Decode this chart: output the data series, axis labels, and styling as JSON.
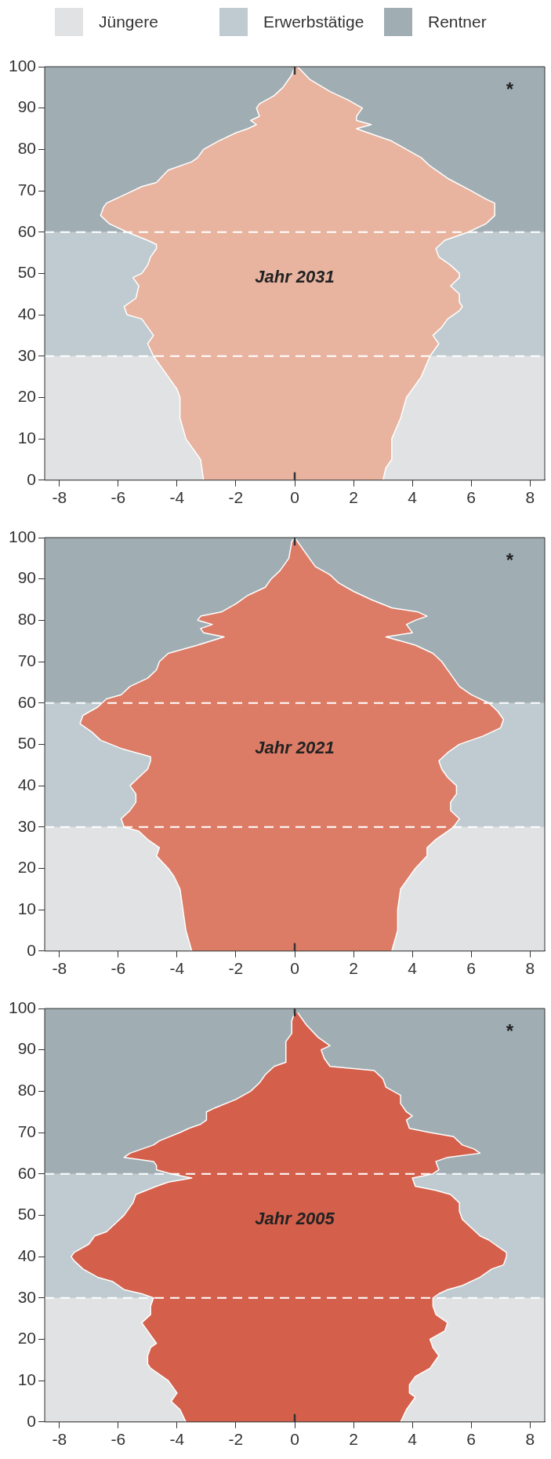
{
  "chart_data": [
    {
      "type": "area",
      "orientation": "horizontal",
      "legend": "top",
      "grid": false,
      "xlim": [
        -8.5,
        8.5
      ],
      "xticks": [
        -8,
        -6,
        -4,
        -2,
        0,
        2,
        4,
        6,
        8
      ],
      "ylim": [
        0,
        100
      ],
      "yticks": [
        0,
        10,
        20,
        30,
        40,
        50,
        60,
        70,
        80,
        90,
        100
      ],
      "bands": [
        {
          "axis": "y",
          "from": 0,
          "to": 30,
          "label": "Jüngere",
          "color": "#e1e2e3"
        },
        {
          "axis": "y",
          "from": 30,
          "to": 60,
          "label": "Erwerbstätige",
          "color": "#bfcbd0"
        },
        {
          "axis": "y",
          "from": 60,
          "to": 100,
          "label": "Rentner",
          "color": "#a0aeb4"
        }
      ],
      "ref_lines": [
        {
          "axis": "y",
          "value": 30,
          "color": "#ffffff",
          "line_style": "dashed"
        },
        {
          "axis": "y",
          "value": 60,
          "color": "#ffffff",
          "line_style": "dashed"
        }
      ],
      "annotations": [
        "Jahr 2031",
        "*"
      ],
      "series": [
        {
          "color": "#e8b4a0",
          "x": [
            0,
            5,
            10,
            15,
            20,
            22,
            25,
            30,
            33,
            35,
            37,
            39,
            40,
            42,
            44,
            47,
            49,
            50,
            52,
            54,
            56,
            57,
            58,
            60,
            62,
            64,
            66,
            67,
            69,
            71,
            72,
            75,
            77,
            78,
            80,
            82,
            84,
            85,
            86,
            87,
            88,
            90,
            91,
            93,
            95,
            98,
            100
          ],
          "values": [
            -3.1,
            -3.2,
            -3.7,
            -3.9,
            -3.9,
            -4.0,
            -4.3,
            -4.8,
            -5.0,
            -4.8,
            -5.0,
            -5.2,
            -5.7,
            -5.8,
            -5.4,
            -5.3,
            -5.5,
            -5.2,
            -5.0,
            -4.9,
            -4.7,
            -4.7,
            -5.0,
            -5.7,
            -6.3,
            -6.6,
            -6.5,
            -6.4,
            -5.8,
            -5.2,
            -4.7,
            -4.3,
            -3.5,
            -3.3,
            -3.1,
            -2.6,
            -2.0,
            -1.6,
            -1.3,
            -1.5,
            -1.2,
            -1.3,
            -1.2,
            -0.7,
            -0.4,
            -0.1,
            0
          ]
        },
        {
          "color": "#e8b4a0",
          "x": [
            0,
            3,
            5,
            10,
            15,
            20,
            25,
            30,
            33,
            35,
            37,
            39,
            41,
            42,
            43,
            45,
            47,
            49,
            50,
            52,
            54,
            56,
            58,
            60,
            62,
            64,
            67,
            68,
            70,
            73,
            76,
            78,
            80,
            82,
            84,
            85,
            86,
            87,
            88,
            90,
            92,
            94,
            97,
            100
          ],
          "values": [
            3.0,
            3.1,
            3.3,
            3.3,
            3.6,
            3.8,
            4.3,
            4.6,
            4.9,
            4.7,
            5.0,
            5.2,
            5.6,
            5.7,
            5.6,
            5.6,
            5.3,
            5.6,
            5.6,
            5.3,
            4.9,
            4.8,
            5.1,
            5.9,
            6.5,
            6.8,
            6.8,
            6.5,
            6.0,
            5.2,
            4.6,
            4.3,
            3.8,
            3.3,
            2.5,
            2.1,
            2.6,
            2.1,
            2.1,
            2.3,
            1.8,
            1.2,
            0.5,
            0.1
          ]
        }
      ]
    },
    {
      "type": "area",
      "orientation": "horizontal",
      "grid": false,
      "xlim": [
        -8.5,
        8.5
      ],
      "xticks": [
        -8,
        -6,
        -4,
        -2,
        0,
        2,
        4,
        6,
        8
      ],
      "ylim": [
        0,
        100
      ],
      "yticks": [
        0,
        10,
        20,
        30,
        40,
        50,
        60,
        70,
        80,
        90,
        100
      ],
      "bands": [
        {
          "axis": "y",
          "from": 0,
          "to": 30,
          "color": "#e1e2e3"
        },
        {
          "axis": "y",
          "from": 30,
          "to": 60,
          "color": "#bfcbd0"
        },
        {
          "axis": "y",
          "from": 60,
          "to": 100,
          "color": "#a0aeb4"
        }
      ],
      "ref_lines": [
        {
          "axis": "y",
          "value": 30,
          "color": "#ffffff",
          "line_style": "dashed"
        },
        {
          "axis": "y",
          "value": 60,
          "color": "#ffffff",
          "line_style": "dashed"
        }
      ],
      "annotations": [
        "Jahr 2021",
        "*"
      ],
      "series": [
        {
          "color": "#dc7c66",
          "x": [
            0,
            5,
            10,
            15,
            18,
            20,
            23,
            25,
            27,
            29,
            30,
            32,
            34,
            36,
            38,
            40,
            42,
            44,
            46,
            47,
            49,
            51,
            53,
            55,
            57,
            59,
            61,
            62,
            64,
            66,
            68,
            70,
            72,
            74,
            76,
            77,
            78,
            79,
            80,
            81,
            82,
            84,
            86,
            88,
            90,
            92,
            95,
            99,
            100
          ],
          "values": [
            -3.5,
            -3.7,
            -3.8,
            -3.9,
            -4.1,
            -4.3,
            -4.7,
            -4.6,
            -5.0,
            -5.3,
            -5.8,
            -5.9,
            -5.6,
            -5.4,
            -5.4,
            -5.6,
            -5.3,
            -5.0,
            -4.9,
            -4.9,
            -5.9,
            -6.6,
            -6.9,
            -7.3,
            -7.2,
            -6.7,
            -6.4,
            -5.9,
            -5.6,
            -5.0,
            -4.7,
            -4.6,
            -4.3,
            -3.3,
            -2.4,
            -3.1,
            -3.2,
            -2.8,
            -3.3,
            -3.2,
            -2.5,
            -2.0,
            -1.6,
            -1.0,
            -0.8,
            -0.5,
            -0.2,
            -0.1,
            0
          ]
        },
        {
          "color": "#dc7c66",
          "x": [
            0,
            5,
            10,
            15,
            18,
            20,
            23,
            25,
            27,
            29,
            30,
            32,
            34,
            36,
            38,
            40,
            42,
            44,
            46,
            48,
            50,
            52,
            54,
            56,
            58,
            60,
            62,
            64,
            66,
            68,
            70,
            72,
            74,
            76,
            77,
            78,
            79,
            80,
            81,
            82,
            83,
            85,
            87,
            89,
            91,
            93,
            96,
            99,
            100
          ],
          "values": [
            3.3,
            3.5,
            3.5,
            3.6,
            3.9,
            4.1,
            4.5,
            4.5,
            4.8,
            5.2,
            5.4,
            5.6,
            5.3,
            5.3,
            5.5,
            5.5,
            5.2,
            5.0,
            4.9,
            5.2,
            5.6,
            6.4,
            7.0,
            7.1,
            6.9,
            6.6,
            6.0,
            5.6,
            5.4,
            5.2,
            5.0,
            4.7,
            4.1,
            3.1,
            4.0,
            3.9,
            3.8,
            4.1,
            4.5,
            4.2,
            3.3,
            2.6,
            2.0,
            1.5,
            1.2,
            0.7,
            0.4,
            0.1,
            0
          ]
        }
      ]
    },
    {
      "type": "area",
      "orientation": "horizontal",
      "grid": false,
      "xlim": [
        -8.5,
        8.5
      ],
      "xticks": [
        -8,
        -6,
        -4,
        -2,
        0,
        2,
        4,
        6,
        8
      ],
      "ylim": [
        0,
        100
      ],
      "yticks": [
        0,
        10,
        20,
        30,
        40,
        50,
        60,
        70,
        80,
        90,
        100
      ],
      "bands": [
        {
          "axis": "y",
          "from": 0,
          "to": 30,
          "color": "#e1e2e3"
        },
        {
          "axis": "y",
          "from": 30,
          "to": 60,
          "color": "#bfcbd0"
        },
        {
          "axis": "y",
          "from": 60,
          "to": 100,
          "color": "#a0aeb4"
        }
      ],
      "ref_lines": [
        {
          "axis": "y",
          "value": 30,
          "color": "#ffffff",
          "line_style": "dashed"
        },
        {
          "axis": "y",
          "value": 60,
          "color": "#ffffff",
          "line_style": "dashed"
        }
      ],
      "annotations": [
        "Jahr 2005",
        "*"
      ],
      "series": [
        {
          "color": "#d4604c",
          "x": [
            0,
            3,
            5,
            7,
            10,
            13,
            14,
            16,
            18,
            19,
            20,
            22,
            24,
            26,
            28,
            30,
            31,
            32,
            34,
            35,
            37,
            39,
            40,
            41,
            43,
            45,
            46,
            48,
            50,
            52,
            53,
            55,
            57,
            58,
            59,
            60,
            61,
            62,
            63,
            64,
            65,
            67,
            68,
            70,
            71,
            72,
            73,
            75,
            76,
            78,
            80,
            82,
            84,
            86,
            87,
            90,
            92,
            94,
            97,
            99
          ],
          "values": [
            -3.7,
            -3.9,
            -4.2,
            -4.0,
            -4.3,
            -4.9,
            -5.0,
            -5.0,
            -4.9,
            -4.7,
            -4.8,
            -5.0,
            -5.2,
            -4.9,
            -4.9,
            -4.8,
            -5.2,
            -5.8,
            -6.2,
            -6.7,
            -7.2,
            -7.5,
            -7.6,
            -7.5,
            -7.0,
            -6.8,
            -6.4,
            -6.1,
            -5.8,
            -5.6,
            -5.5,
            -5.4,
            -4.7,
            -4.3,
            -3.5,
            -4.2,
            -4.7,
            -4.7,
            -4.8,
            -5.8,
            -5.6,
            -4.8,
            -4.6,
            -3.9,
            -3.6,
            -3.2,
            -3.0,
            -3.0,
            -2.7,
            -2.0,
            -1.5,
            -1.2,
            -1.0,
            -0.7,
            -0.3,
            -0.3,
            -0.3,
            -0.1,
            -0.1,
            0
          ]
        },
        {
          "color": "#d4604c",
          "x": [
            0,
            3,
            6,
            7,
            9,
            11,
            13,
            14,
            16,
            18,
            20,
            22,
            24,
            26,
            28,
            30,
            31,
            32,
            33,
            35,
            37,
            38,
            40,
            41,
            42,
            44,
            45,
            47,
            49,
            51,
            53,
            55,
            56,
            57,
            59,
            60,
            61,
            63,
            64,
            65,
            66,
            67,
            69,
            70,
            71,
            73,
            74,
            75,
            77,
            79,
            81,
            83,
            85,
            86,
            88,
            90,
            91,
            93,
            96,
            99
          ],
          "values": [
            3.6,
            3.8,
            4.1,
            3.9,
            3.9,
            4.1,
            4.6,
            4.7,
            4.9,
            4.7,
            4.6,
            5.1,
            5.2,
            4.8,
            4.7,
            4.7,
            4.9,
            5.2,
            5.7,
            6.3,
            6.7,
            7.1,
            7.2,
            7.2,
            7.0,
            6.6,
            6.3,
            6.0,
            5.7,
            5.6,
            5.6,
            5.3,
            4.8,
            4.1,
            4.0,
            4.7,
            4.9,
            4.8,
            5.2,
            6.3,
            6.1,
            5.7,
            5.4,
            4.6,
            3.9,
            3.8,
            4.0,
            3.8,
            3.6,
            3.6,
            3.1,
            3.0,
            2.7,
            1.2,
            1.0,
            0.9,
            1.2,
            0.8,
            0.4,
            0.1
          ]
        }
      ]
    }
  ]
}
